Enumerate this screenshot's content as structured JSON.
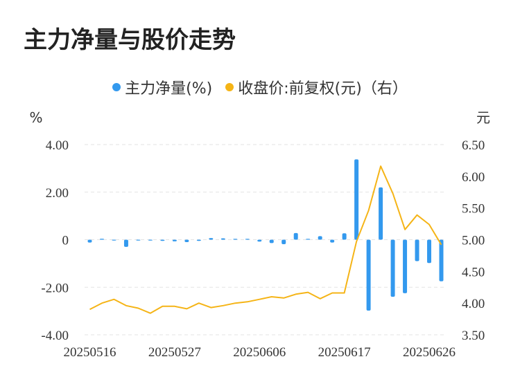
{
  "title": "主力净量与股价走势",
  "legend": [
    {
      "name": "主力净量(%)",
      "color": "#3399ee"
    },
    {
      "name": "收盘价:前复权(元)（右）",
      "color": "#f5b416"
    }
  ],
  "chart_data": {
    "type": "bar+line",
    "left_axis": {
      "unit": "%",
      "ticks": [
        "4.00",
        "2.00",
        "0",
        "-2.00",
        "-4.00"
      ],
      "ylim": [
        -4,
        4
      ]
    },
    "right_axis": {
      "unit": "元",
      "ticks": [
        "6.50",
        "6.00",
        "5.50",
        "5.00",
        "4.50",
        "4.00",
        "3.50"
      ],
      "ylim": [
        3.5,
        6.5
      ]
    },
    "x_tick_labels": [
      "20250516",
      "20250527",
      "20250606",
      "20250617",
      "20250626"
    ],
    "x_tick_index": [
      0,
      7,
      14,
      21,
      28
    ],
    "series": [
      {
        "name": "主力净量(%)",
        "type": "bar",
        "color": "#3399ee",
        "values": [
          -0.12,
          0.04,
          -0.03,
          -0.3,
          -0.02,
          -0.02,
          -0.05,
          -0.07,
          -0.1,
          -0.05,
          0.07,
          0.06,
          0.0,
          0.0,
          -0.08,
          -0.14,
          -0.19,
          0.28,
          0.01,
          0.15,
          -0.12,
          0.27,
          3.38,
          -2.98,
          2.2,
          -2.4,
          -2.25,
          -0.9,
          -0.98,
          -1.75
        ]
      },
      {
        "name": "收盘价:前复权(元)（右）",
        "type": "line",
        "color": "#f5b416",
        "values": [
          3.9,
          4.0,
          4.06,
          3.96,
          3.92,
          3.84,
          3.95,
          3.95,
          3.91,
          4.0,
          3.93,
          3.96,
          4.0,
          4.02,
          4.06,
          4.1,
          4.08,
          4.14,
          4.17,
          4.07,
          4.16,
          4.16,
          4.97,
          5.46,
          6.16,
          5.73,
          5.16,
          5.39,
          5.24,
          4.92
        ]
      }
    ],
    "grid": true
  }
}
